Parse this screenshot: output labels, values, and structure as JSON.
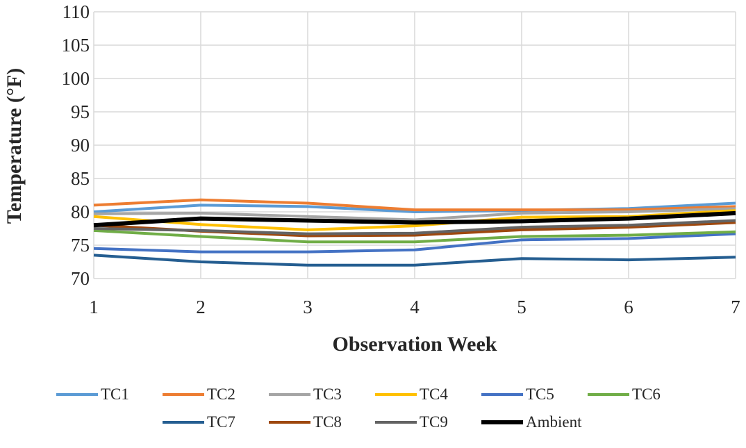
{
  "chart_data": {
    "type": "line",
    "x_label": "Observation Week",
    "y_label": "Temperature  (°F)",
    "x": [
      1,
      2,
      3,
      4,
      5,
      6,
      7
    ],
    "xlim": [
      1,
      7
    ],
    "xticks": [
      1,
      2,
      3,
      4,
      5,
      6,
      7
    ],
    "ylim": [
      70,
      110
    ],
    "yticks": [
      70,
      75,
      80,
      85,
      90,
      95,
      100,
      105,
      110
    ],
    "grid": true,
    "legend": "bottom",
    "series": [
      {
        "name": "TC1",
        "color": "#5b9bd5",
        "values": [
          80.0,
          81.0,
          80.8,
          80.0,
          80.2,
          80.5,
          81.3
        ]
      },
      {
        "name": "TC2",
        "color": "#ed7d31",
        "values": [
          81.0,
          81.8,
          81.3,
          80.3,
          80.3,
          80.3,
          80.8
        ]
      },
      {
        "name": "TC3",
        "color": "#a5a5a5",
        "values": [
          79.7,
          79.8,
          79.3,
          78.8,
          79.8,
          80.0,
          80.5
        ]
      },
      {
        "name": "TC4",
        "color": "#ffc000",
        "values": [
          79.3,
          78.1,
          77.3,
          77.9,
          79.2,
          79.3,
          80.2
        ]
      },
      {
        "name": "TC5",
        "color": "#4472c4",
        "values": [
          74.5,
          74.0,
          74.0,
          74.3,
          75.8,
          76.0,
          76.7
        ]
      },
      {
        "name": "TC6",
        "color": "#70ad47",
        "values": [
          77.2,
          76.3,
          75.5,
          75.5,
          76.3,
          76.5,
          77.0
        ]
      },
      {
        "name": "TC7",
        "color": "#255e91",
        "values": [
          73.5,
          72.5,
          72.0,
          72.0,
          73.0,
          72.8,
          73.2
        ]
      },
      {
        "name": "TC8",
        "color": "#9e480e",
        "values": [
          78.0,
          77.1,
          76.4,
          76.5,
          77.3,
          77.7,
          78.4
        ]
      },
      {
        "name": "TC9",
        "color": "#636363",
        "values": [
          77.5,
          77.2,
          76.7,
          76.8,
          77.7,
          78.0,
          78.7
        ]
      },
      {
        "name": "Ambient",
        "color": "#000000",
        "values": [
          78.0,
          79.0,
          78.7,
          78.4,
          78.6,
          79.0,
          79.8
        ]
      }
    ]
  }
}
